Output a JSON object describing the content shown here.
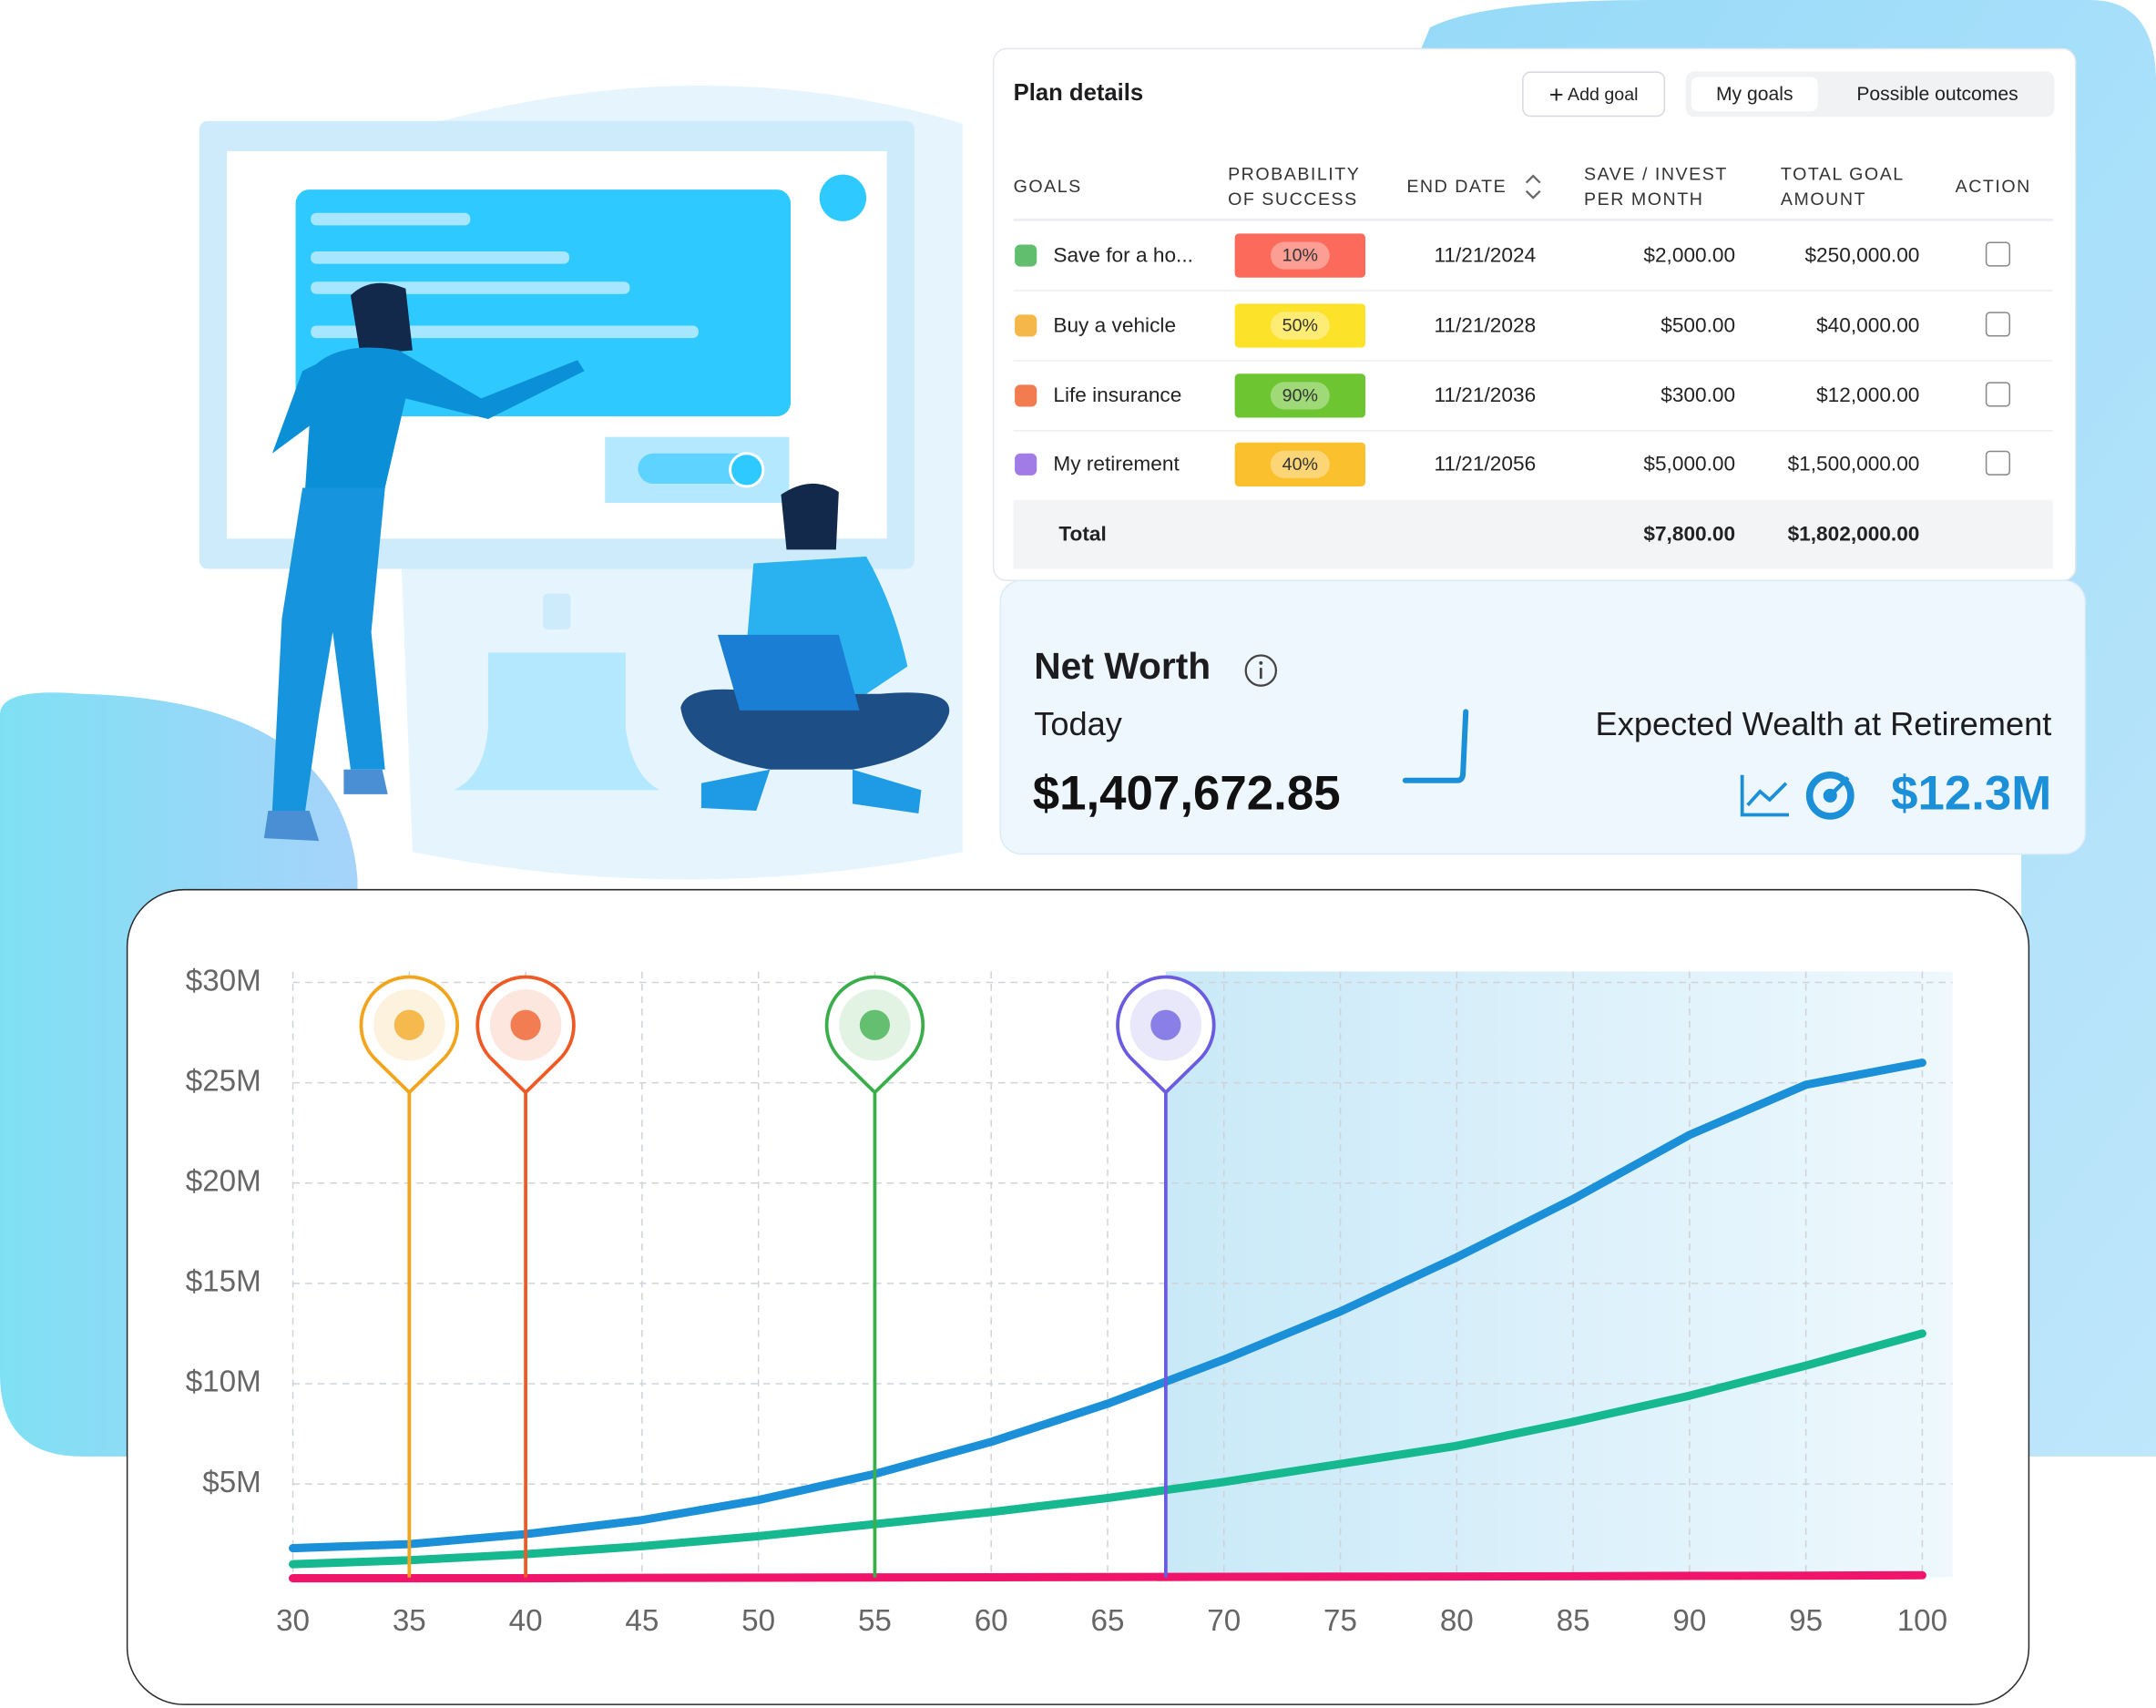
{
  "plan": {
    "title": "Plan details",
    "add_goal": "Add goal",
    "tabs": [
      "My goals",
      "Possible outcomes"
    ],
    "columns": [
      "GOALS",
      "PROBABILITY OF SUCCESS",
      "END DATE",
      "SAVE / INVEST PER MONTH",
      "TOTAL GOAL AMOUNT",
      "ACTION"
    ],
    "rows": [
      {
        "goal": "Save for a ho...",
        "probability": "10%",
        "badge_color": "#fb6a5a",
        "end_date": "11/21/2024",
        "save": "$2,000.00",
        "total": "$250,000.00"
      },
      {
        "goal": "Buy a vehicle",
        "probability": "50%",
        "badge_color": "#fde22a",
        "end_date": "11/21/2028",
        "save": "$500.00",
        "total": "$40,000.00"
      },
      {
        "goal": "Life insurance",
        "probability": "90%",
        "badge_color": "#6cc531",
        "end_date": "11/21/2036",
        "save": "$300.00",
        "total": "$12,000.00"
      },
      {
        "goal": "My retirement",
        "probability": "40%",
        "badge_color": "#fbc02d",
        "end_date": "11/21/2056",
        "save": "$5,000.00",
        "total": "$1,500,000.00"
      }
    ],
    "total": {
      "label": "Total",
      "save": "$7,800.00",
      "total": "$1,802,000.00"
    }
  },
  "net_worth": {
    "title": "Net Worth",
    "today_label": "Today",
    "today_value": "$1,407,672.85",
    "retirement_label": "Expected Wealth at Retirement",
    "retirement_value": "$12.3M"
  },
  "chart_data": {
    "type": "line",
    "x": [
      30,
      35,
      40,
      45,
      50,
      55,
      60,
      65,
      70,
      75,
      80,
      85,
      90,
      95,
      100
    ],
    "series": [
      {
        "color": "#1b8fd8",
        "values": [
          1.8,
          2.0,
          2.5,
          3.2,
          4.2,
          5.5,
          7.1,
          9.0,
          11.2,
          13.6,
          16.3,
          19.2,
          22.4,
          24.9,
          26.0
        ]
      },
      {
        "color": "#15b88f",
        "values": [
          1.0,
          1.2,
          1.5,
          1.9,
          2.4,
          3.0,
          3.6,
          4.3,
          5.1,
          6.0,
          6.9,
          8.1,
          9.4,
          10.9,
          12.5
        ]
      },
      {
        "color": "#f0146a",
        "values": [
          0.3,
          0.3,
          0.3,
          0.32,
          0.33,
          0.34,
          0.35,
          0.36,
          0.37,
          0.38,
          0.39,
          0.4,
          0.42,
          0.43,
          0.45
        ]
      }
    ],
    "xlim": [
      30,
      101.3
    ],
    "ylim": [
      0,
      30
    ],
    "xticks": [
      30,
      35,
      40,
      45,
      50,
      55,
      60,
      65,
      70,
      75,
      80,
      85,
      90,
      95,
      100
    ],
    "yticks": [
      {
        "value": 5,
        "label": "$5M"
      },
      {
        "value": 10,
        "label": "$10M"
      },
      {
        "value": 15,
        "label": "$15M"
      },
      {
        "value": 20,
        "label": "$20M"
      },
      {
        "value": 25,
        "label": "$25M"
      },
      {
        "value": 30,
        "label": "$30M"
      }
    ],
    "grid": true,
    "markers": [
      {
        "x": 35,
        "color": "#f2a51c"
      },
      {
        "x": 40,
        "color": "#ef5a24"
      },
      {
        "x": 55,
        "color": "#3aae4a"
      },
      {
        "x": 67.5,
        "color": "#6a5be0"
      }
    ]
  }
}
